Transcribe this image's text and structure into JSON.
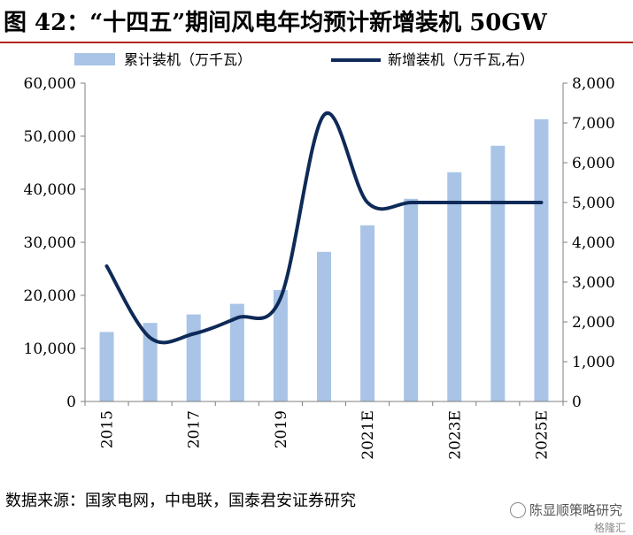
{
  "figure": {
    "title": "图 42：“十四五”期间风电年均预计新增装机 50GW",
    "source": "数据来源：国家电网，中电联，国泰君安证券研究",
    "watermark": "陈显顺策略研究",
    "watermark_sub": "格隆汇"
  },
  "colors": {
    "bar": "#a9c4e6",
    "line": "#0e2a57",
    "title_rule": "#b0271f",
    "axis": "#7f7f7f"
  },
  "chart_data": {
    "type": "bar+line",
    "categories": [
      "2015",
      "2016",
      "2017",
      "2018",
      "2019",
      "2020",
      "2021E",
      "2022E",
      "2023E",
      "2024E",
      "2025E"
    ],
    "x_tick_labels": [
      "2015",
      "",
      "2017",
      "",
      "2019",
      "",
      "2021E",
      "",
      "2023E",
      "",
      "2025E"
    ],
    "series": [
      {
        "name": "累计装机（万千瓦）",
        "type": "bar",
        "axis": "left",
        "values": [
          13100,
          14800,
          16400,
          18400,
          21000,
          28200,
          33200,
          38200,
          43200,
          48200,
          53200
        ]
      },
      {
        "name": "新增装机（万千瓦,右）",
        "type": "line",
        "axis": "right",
        "smooth": true,
        "values": [
          3400,
          1600,
          1700,
          2100,
          2600,
          7200,
          5000,
          5000,
          5000,
          5000,
          5000
        ]
      }
    ],
    "left_axis": {
      "ylim": [
        0,
        60000
      ],
      "ticks": [
        0,
        10000,
        20000,
        30000,
        40000,
        50000,
        60000
      ],
      "tick_labels": [
        "0",
        "10,000",
        "20,000",
        "30,000",
        "40,000",
        "50,000",
        "60,000"
      ]
    },
    "right_axis": {
      "ylim": [
        0,
        8000
      ],
      "ticks": [
        0,
        1000,
        2000,
        3000,
        4000,
        5000,
        6000,
        7000,
        8000
      ],
      "tick_labels": [
        "0",
        "1,000",
        "2,000",
        "3,000",
        "4,000",
        "5,000",
        "6,000",
        "7,000",
        "8,000"
      ]
    },
    "grid": false,
    "legend_placement": "top"
  }
}
